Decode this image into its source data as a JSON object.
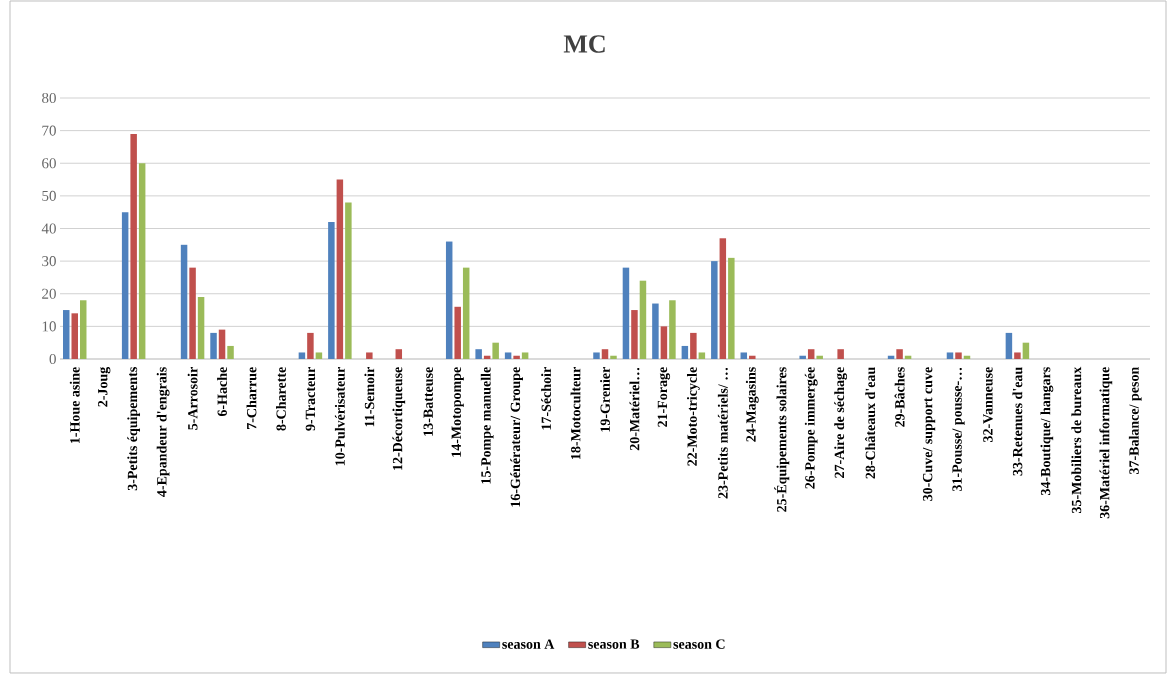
{
  "chart_data": {
    "type": "bar",
    "title": "MC",
    "categories": [
      "1-Houe asine",
      "2-Joug",
      "3-Petits équipements",
      "4-Epandeur d'engrais",
      "5-Arrosoir",
      "6-Hache",
      "7-Charrue",
      "8-Charette",
      "9-Tracteur",
      "10-Pulvérisateur",
      "11-Semoir",
      "12-Décortiqueuse",
      "13-Batteuse",
      "14-Motopompe",
      "15-Pompe manuelle",
      "16-Générateur/ Groupe",
      "17-Séchoir",
      "18-Motoculteur",
      "19-Grenier",
      "20-Matériel…",
      "21-Forage",
      "22-Moto-tricycle",
      "23-Petits matériels/ …",
      "24-Magasins",
      "25-Équipements solaires",
      "26-Pompe immergée",
      "27-Aire de séchage",
      "28-Châteaux d'eau",
      "29-Bâches",
      "30-Cuve/ support cuve",
      "31-Pousse/ pousse-…",
      "32-Vanneuse",
      "33-Retenues d'eau",
      "34-Boutique/ hangars",
      "35-Mobiliers de bureaux",
      "36-Matériel informatique",
      "37-Balance/ peson"
    ],
    "series": [
      {
        "name": "season A",
        "color": "#4f81bd",
        "values": [
          15,
          0,
          45,
          0,
          35,
          8,
          0,
          0,
          2,
          42,
          0,
          0,
          0,
          36,
          3,
          2,
          0,
          0,
          2,
          28,
          17,
          4,
          30,
          2,
          0,
          1,
          0,
          0,
          1,
          0,
          2,
          0,
          8,
          0,
          0,
          0,
          0
        ]
      },
      {
        "name": "season B",
        "color": "#c0504d",
        "values": [
          14,
          0,
          69,
          0,
          28,
          9,
          0,
          0,
          8,
          55,
          2,
          3,
          0,
          16,
          1,
          1,
          0,
          0,
          3,
          15,
          10,
          8,
          37,
          1,
          0,
          3,
          3,
          0,
          3,
          0,
          2,
          0,
          2,
          0,
          0,
          0,
          0
        ]
      },
      {
        "name": "season C",
        "color": "#9bbb59",
        "values": [
          18,
          0,
          60,
          0,
          19,
          4,
          0,
          0,
          2,
          48,
          0,
          0,
          0,
          28,
          5,
          2,
          0,
          0,
          1,
          24,
          18,
          2,
          31,
          0,
          0,
          1,
          0,
          0,
          1,
          0,
          1,
          0,
          5,
          0,
          0,
          0,
          0
        ]
      }
    ],
    "ylim": [
      0,
      80
    ],
    "yticks": [
      0,
      10,
      20,
      30,
      40,
      50,
      60,
      70,
      80
    ],
    "grid": "y",
    "legend": "bottom"
  }
}
